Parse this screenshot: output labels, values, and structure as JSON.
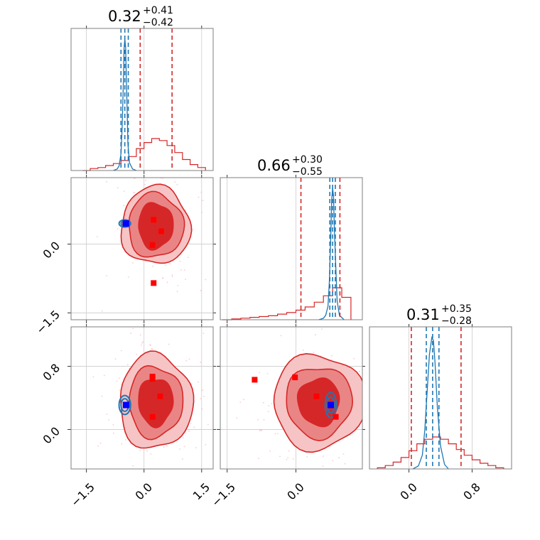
{
  "colors": {
    "posterior_a": "#d62728",
    "posterior_b": "#1f77b4",
    "truth": "#0000ff",
    "points": "#ff0000"
  },
  "panels": [
    {
      "title_value": "0.32",
      "title_plus": "+0.41",
      "title_minus": "−0.42"
    },
    {
      "title_value": "0.66",
      "title_plus": "+0.30",
      "title_minus": "−0.55"
    },
    {
      "title_value": "0.31",
      "title_plus": "+0.35",
      "title_minus": "−0.28"
    }
  ],
  "axes": {
    "p0": {
      "range": [
        -1.9,
        1.8
      ],
      "ticks": [
        "−1.5",
        "0.0",
        "1.5"
      ],
      "tick_values": [
        -1.5,
        0.0,
        1.5
      ]
    },
    "p1": {
      "range": [
        -1.65,
        1.45
      ],
      "ticks": [
        "−1.5",
        "0.0"
      ],
      "tick_values": [
        -1.5,
        0.0
      ]
    },
    "p2": {
      "range": [
        -0.5,
        1.3
      ],
      "ticks": [
        "0.0",
        "0.8"
      ],
      "tick_values": [
        0.0,
        0.8
      ]
    }
  },
  "chart_data": {
    "type": "corner",
    "parameters": 3,
    "series": [
      {
        "name": "",
        "color": "#d62728"
      },
      {
        "name": "",
        "color": "#1f77b4"
      }
    ],
    "marginals": [
      {
        "param": 0,
        "a_quantiles": [
          -0.1,
          0.32,
          0.73
        ],
        "b_quantiles": [
          -0.6,
          -0.5,
          -0.41
        ],
        "a_hist": {
          "bins": [
            -1.6,
            -1.4,
            -1.2,
            -1.0,
            -0.8,
            -0.6,
            -0.4,
            -0.2,
            0.0,
            0.2,
            0.4,
            0.6,
            0.8,
            1.0,
            1.2,
            1.4,
            1.6
          ],
          "counts": [
            0,
            2,
            3,
            5,
            7,
            10,
            14,
            22,
            28,
            32,
            30,
            25,
            18,
            11,
            6,
            3,
            1
          ]
        },
        "b_curve": {
          "x": [
            -0.8,
            -0.7,
            -0.65,
            -0.6,
            -0.57,
            -0.54,
            -0.52,
            -0.5,
            -0.48,
            -0.46,
            -0.44,
            -0.42,
            -0.38,
            -0.3,
            -0.2
          ],
          "y": [
            0,
            2,
            6,
            22,
            55,
            110,
            158,
            170,
            160,
            120,
            80,
            35,
            10,
            2,
            0
          ]
        }
      },
      {
        "param": 1,
        "a_quantiles": [
          0.11,
          0.66,
          0.96
        ],
        "b_quantiles": [
          0.74,
          0.8,
          0.86
        ],
        "a_hist": {
          "bins": [
            -1.6,
            -1.4,
            -1.2,
            -1.0,
            -0.8,
            -0.6,
            -0.4,
            -0.2,
            0.0,
            0.2,
            0.4,
            0.6,
            0.8,
            1.0,
            1.2
          ],
          "counts": [
            0,
            1,
            2,
            3,
            4,
            5,
            7,
            9,
            12,
            16,
            22,
            30,
            40,
            28,
            6
          ]
        },
        "b_curve": {
          "x": [
            0.5,
            0.6,
            0.65,
            0.7,
            0.73,
            0.76,
            0.78,
            0.8,
            0.82,
            0.84,
            0.87,
            0.9,
            0.95,
            1.05
          ],
          "y": [
            0,
            2,
            6,
            18,
            50,
            110,
            160,
            175,
            165,
            120,
            70,
            25,
            6,
            0
          ]
        }
      },
      {
        "param": 2,
        "a_quantiles": [
          0.03,
          0.31,
          0.66
        ],
        "b_quantiles": [
          0.22,
          0.3,
          0.38
        ],
        "a_hist": {
          "bins": [
            -0.4,
            -0.3,
            -0.2,
            -0.1,
            0.0,
            0.1,
            0.2,
            0.3,
            0.4,
            0.5,
            0.6,
            0.7,
            0.8,
            0.9,
            1.0,
            1.1,
            1.2
          ],
          "counts": [
            1,
            3,
            6,
            10,
            16,
            22,
            26,
            28,
            26,
            22,
            17,
            12,
            8,
            5,
            3,
            1,
            0
          ]
        },
        "b_curve": {
          "x": [
            0.05,
            0.12,
            0.17,
            0.2,
            0.23,
            0.26,
            0.29,
            0.31,
            0.33,
            0.36,
            0.4,
            0.45,
            0.5
          ],
          "y": [
            0,
            4,
            18,
            50,
            100,
            150,
            172,
            168,
            140,
            80,
            30,
            6,
            0
          ]
        }
      }
    ],
    "pairs": [
      {
        "x_param": 0,
        "y_param": 1,
        "a_center": [
          0.3,
          0.4
        ],
        "a_radii": [
          [
            0.45,
            0.5
          ],
          [
            0.72,
            0.7
          ],
          [
            0.9,
            0.85
          ]
        ],
        "b_center": [
          -0.5,
          0.45
        ],
        "b_radii": [
          [
            0.1,
            0.05
          ],
          [
            0.15,
            0.08
          ]
        ],
        "truth": [
          -0.47,
          0.45
        ],
        "points": [
          [
            0.25,
            0.53
          ],
          [
            0.45,
            0.28
          ],
          [
            0.22,
            -0.02
          ],
          [
            0.25,
            -0.85
          ]
        ]
      },
      {
        "x_param": 0,
        "y_param": 2,
        "a_center": [
          0.3,
          0.35
        ],
        "a_radii": [
          [
            0.45,
            0.3
          ],
          [
            0.7,
            0.45
          ],
          [
            0.95,
            0.6
          ]
        ],
        "b_center": [
          -0.5,
          0.31
        ],
        "b_radii": [
          [
            0.1,
            0.08
          ],
          [
            0.15,
            0.12
          ]
        ],
        "truth": [
          -0.47,
          0.31
        ],
        "points": [
          [
            0.22,
            0.67
          ],
          [
            0.22,
            0.64
          ],
          [
            0.42,
            0.42
          ],
          [
            0.22,
            0.16
          ]
        ]
      },
      {
        "x_param": 1,
        "y_param": 2,
        "a_center": [
          0.5,
          0.35
        ],
        "a_radii": [
          [
            0.45,
            0.3
          ],
          [
            0.72,
            0.45
          ],
          [
            1.0,
            0.6
          ]
        ],
        "b_center": [
          0.76,
          0.31
        ],
        "b_radii": [
          [
            0.08,
            0.1
          ],
          [
            0.12,
            0.16
          ]
        ],
        "truth": [
          0.76,
          0.31
        ],
        "points": [
          [
            -0.9,
            0.63
          ],
          [
            -0.02,
            0.66
          ],
          [
            0.45,
            0.42
          ],
          [
            0.87,
            0.16
          ]
        ]
      }
    ]
  }
}
